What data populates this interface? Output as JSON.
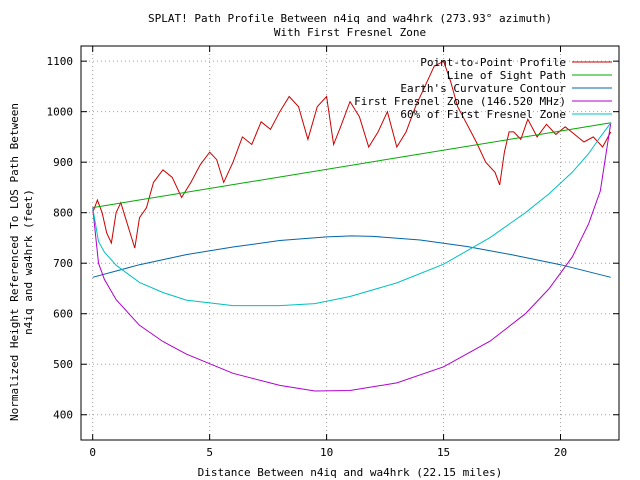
{
  "chart_data": {
    "type": "line",
    "title": "SPLAT! Path Profile Between n4iq and wa4hrk (273.93° azimuth)",
    "subtitle": "With First Fresnel Zone",
    "xlabel": "Distance Between n4iq and wa4hrk (22.15 miles)",
    "ylabel_line1": "Normalized Height Referenced To LOS Path Between",
    "ylabel_line2": "n4iq and wa4hrk (feet)",
    "xlim": [
      -0.5,
      22.5
    ],
    "ylim": [
      350,
      1130
    ],
    "x_ticks": [
      0,
      5,
      10,
      15,
      20
    ],
    "y_ticks": [
      400,
      500,
      600,
      700,
      800,
      900,
      1000,
      1100
    ],
    "grid": true,
    "legend_position": "top-right",
    "series": [
      {
        "name": "Point-to-Point Profile",
        "color": "#cc0000",
        "x": [
          0,
          0.2,
          0.4,
          0.6,
          0.8,
          1.0,
          1.2,
          1.4,
          1.6,
          1.8,
          2.0,
          2.3,
          2.6,
          3.0,
          3.4,
          3.8,
          4.2,
          4.6,
          5.0,
          5.3,
          5.6,
          6.0,
          6.4,
          6.8,
          7.2,
          7.6,
          8.0,
          8.4,
          8.8,
          9.2,
          9.6,
          10.0,
          10.3,
          10.6,
          11.0,
          11.4,
          11.8,
          12.2,
          12.6,
          13.0,
          13.4,
          13.8,
          14.2,
          14.6,
          15.0,
          15.3,
          15.6,
          16.0,
          16.4,
          16.8,
          17.2,
          17.4,
          17.6,
          17.8,
          18.0,
          18.3,
          18.6,
          19.0,
          19.4,
          19.8,
          20.2,
          20.6,
          21.0,
          21.4,
          21.8,
          22.15
        ],
        "y": [
          800,
          825,
          800,
          760,
          740,
          800,
          820,
          790,
          760,
          730,
          790,
          810,
          860,
          885,
          870,
          830,
          860,
          895,
          920,
          905,
          860,
          900,
          950,
          935,
          980,
          965,
          1000,
          1030,
          1010,
          945,
          1010,
          1030,
          935,
          970,
          1020,
          990,
          930,
          960,
          1000,
          930,
          960,
          1010,
          1050,
          1090,
          1100,
          1060,
          1010,
          975,
          940,
          900,
          880,
          855,
          920,
          960,
          960,
          945,
          985,
          950,
          975,
          955,
          970,
          955,
          940,
          950,
          930,
          960
        ]
      },
      {
        "name": "Line of Sight Path",
        "color": "#00aa00",
        "x": [
          0,
          22.15
        ],
        "y": [
          810,
          978
        ]
      },
      {
        "name": "Earth's Curvature Contour",
        "color": "#0066aa",
        "x": [
          0,
          2,
          4,
          6,
          8,
          10,
          11.075,
          12,
          14,
          16,
          18,
          20,
          22.15
        ],
        "y": [
          672,
          697,
          717,
          732,
          745,
          752,
          754,
          753,
          746,
          733,
          716,
          697,
          672
        ]
      },
      {
        "name": "First Fresnel Zone (146.520 MHz)",
        "color": "#b000d0",
        "x": [
          0,
          0.25,
          0.5,
          1,
          2,
          3,
          4,
          6,
          8,
          9.5,
          11,
          13,
          15,
          17,
          18.5,
          19.5,
          20.5,
          21.2,
          21.7,
          22.15
        ],
        "y": [
          810,
          700,
          668,
          628,
          577,
          545,
          520,
          482,
          458,
          447,
          448,
          463,
          495,
          546,
          600,
          649,
          712,
          778,
          843,
          978
        ]
      },
      {
        "name": "60% of First Fresnel Zone",
        "color": "#00c0c0",
        "x": [
          0,
          0.25,
          0.5,
          1,
          2,
          3,
          4,
          6,
          8,
          9.5,
          11,
          13,
          15,
          17,
          18.5,
          19.5,
          20.5,
          21.2,
          21.7,
          22.15
        ],
        "y": [
          810,
          743,
          722,
          696,
          662,
          642,
          627,
          616,
          616,
          620,
          634,
          661,
          698,
          751,
          800,
          837,
          880,
          917,
          950,
          978
        ]
      }
    ]
  }
}
